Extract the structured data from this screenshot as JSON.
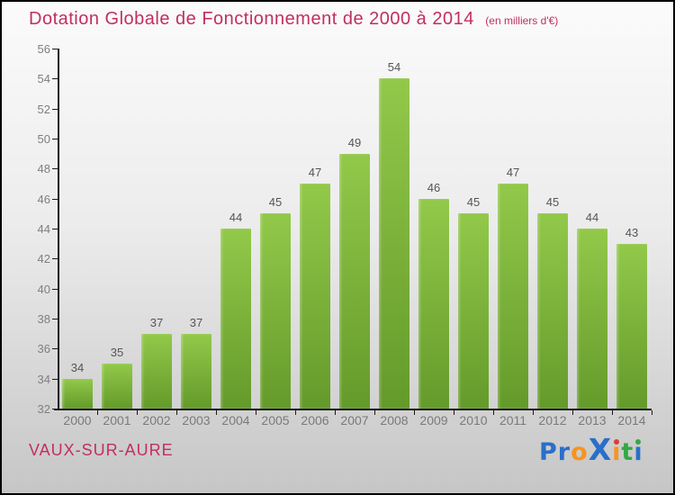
{
  "header": {
    "title": "Dotation Globale de Fonctionnement de 2000 à 2014",
    "subtitle": "(en milliers d'€)"
  },
  "chart_data": {
    "type": "bar",
    "categories": [
      "2000",
      "2001",
      "2002",
      "2003",
      "2004",
      "2005",
      "2006",
      "2007",
      "2008",
      "2009",
      "2010",
      "2011",
      "2012",
      "2013",
      "2014"
    ],
    "values": [
      34,
      35,
      37,
      37,
      44,
      45,
      47,
      49,
      54,
      46,
      45,
      47,
      45,
      44,
      43
    ],
    "title": "Dotation Globale de Fonctionnement de 2000 à 2014",
    "subtitle": "(en milliers d'€)",
    "xlabel": "",
    "ylabel": "",
    "ylim": [
      32,
      56
    ],
    "ytick_step": 2,
    "grid": false,
    "legend": "none",
    "value_labels": true
  },
  "footer": {
    "commune": "VAUX-SUR-AURE",
    "logo_text": "ProXiti",
    "logo_letters": [
      {
        "ch": "P",
        "color": "#2a6fc9"
      },
      {
        "ch": "r",
        "color": "#2a6fc9"
      },
      {
        "ch": "o",
        "color": "#f7941d"
      },
      {
        "ch": "X",
        "color": "#2a6fc9",
        "big": true
      },
      {
        "ch": "i",
        "color": "#f7941d",
        "dot": "#e03c31"
      },
      {
        "ch": "t",
        "color": "#35a845"
      },
      {
        "ch": "i",
        "color": "#2a6fc9",
        "dot": "#35a845"
      }
    ]
  },
  "colors": {
    "title": "#c22e63",
    "bar_top": "#92c94a",
    "bar_bottom": "#649a2a",
    "axis": "#1a1a1a",
    "tick_label": "#7f7f7f",
    "value_label": "#555555",
    "background_top": "#fbfbfb",
    "background_bottom": "#c6c6c6"
  }
}
